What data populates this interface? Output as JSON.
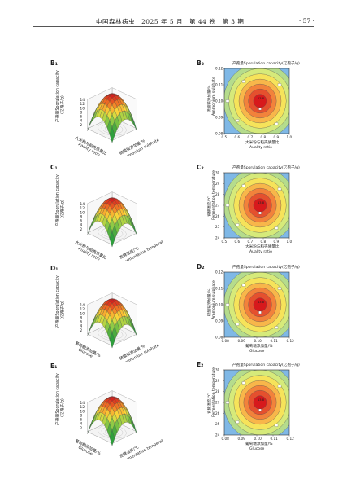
{
  "header": {
    "journal": "中国森林病虫",
    "issue": "2025 年 5 月　第 44 卷　第 3 期",
    "page": "· 57 ·"
  },
  "surface_plots": [
    {
      "label": "B₁",
      "z_label_cn": "产孢量Sporulation capacity",
      "z_label_unit": "(亿孢子/g)",
      "z_ticks": [
        "14",
        "12",
        "10",
        "8",
        "6",
        "4",
        "2"
      ],
      "x_label_cn": "大米粉与稻壳质量比",
      "x_label_en": "Aaulity ratio",
      "y_label_cn": "硫酸铵添加量/%",
      "y_label_en": "Ammonium sulphate"
    },
    {
      "label": "C₁",
      "z_label_cn": "产孢量Sporulation capacity",
      "z_label_unit": "(亿孢子/g)",
      "z_ticks": [
        "14",
        "12",
        "10",
        "8",
        "6",
        "4",
        "2"
      ],
      "x_label_cn": "大米粉与稻壳质量比",
      "x_label_en": "Auality ratio",
      "y_label_cn": "发酵温度/℃",
      "y_label_en": "Fermentation temperature"
    },
    {
      "label": "D₁",
      "z_label_cn": "产孢量Sporulation capacity",
      "z_label_unit": "(亿孢子/g)",
      "z_ticks": [
        "14",
        "12",
        "10",
        "8",
        "6",
        "4",
        "2"
      ],
      "x_label_cn": "葡萄糖添加量/%",
      "x_label_en": "Glucose",
      "y_label_cn": "硫酸铵添加量/%",
      "y_label_en": "Ammonium sulphate"
    },
    {
      "label": "E₁",
      "z_label_cn": "产孢量Sporulation capacity",
      "z_label_unit": "(亿孢子/g)",
      "z_ticks": [
        "14",
        "12",
        "10",
        "8",
        "6",
        "4",
        "2"
      ],
      "x_label_cn": "葡萄糖添加量/%",
      "x_label_en": "Glucose",
      "y_label_cn": "发酵温度/℃",
      "y_label_en": "Fermentation temperature"
    }
  ],
  "contour_plots": [
    {
      "label": "B₂",
      "title": "产孢量Sporulation capacity(亿孢子/g)",
      "ylabel_cn": "硫酸铵添加量/%",
      "ylabel_en": "Ammonium sulphate",
      "xlabel_cn": "大米粉与稻壳质量比",
      "xlabel_en": "Auality ratio",
      "x_ticks": [
        "0.5",
        "0.6",
        "0.7",
        "0.8",
        "0.9",
        "1.0"
      ],
      "y_ticks": [
        "0.08",
        "0.09",
        "0.10",
        "0.11",
        "0.12"
      ],
      "center_value": "13.8"
    },
    {
      "label": "C₂",
      "title": "产孢量Sporulation capacity(亿孢子/g)",
      "ylabel_cn": "发酵温度/℃",
      "ylabel_en": "Fermentation temperature",
      "xlabel_cn": "大米粉与稻壳质量比",
      "xlabel_en": "Auality ratio",
      "x_ticks": [
        "0.5",
        "0.6",
        "0.7",
        "0.8",
        "0.9",
        "1.0"
      ],
      "y_ticks": [
        "24",
        "25",
        "26",
        "27",
        "28",
        "29",
        "30"
      ],
      "center_value": "13.8"
    },
    {
      "label": "D₂",
      "title": "产孢量Sporulation capacity(亿孢子/g)",
      "ylabel_cn": "硫酸铵添加量/%",
      "ylabel_en": "Ammonium sulphate",
      "xlabel_cn": "葡萄糖添加量/%",
      "xlabel_en": "Glucose",
      "x_ticks": [
        "0.08",
        "0.09",
        "0.10",
        "0.11",
        "0.12"
      ],
      "y_ticks": [
        "0.08",
        "0.09",
        "0.10",
        "0.11",
        "0.12"
      ],
      "center_value": "13.8"
    },
    {
      "label": "E₂",
      "title": "产孢量Sporulation capacity(亿孢子/g)",
      "ylabel_cn": "发酵温度/℃",
      "ylabel_en": "Fermentation temperature",
      "xlabel_cn": "葡萄糖添加量/%",
      "xlabel_en": "Glucose",
      "x_ticks": [
        "0.08",
        "0.09",
        "0.10",
        "0.11",
        "0.12"
      ],
      "y_ticks": [
        "24",
        "25",
        "26",
        "27",
        "28",
        "29",
        "30"
      ],
      "center_value": "13.8"
    }
  ],
  "colors": {
    "peak": "#d7191c",
    "high": "#f46d43",
    "mid": "#fdae61",
    "low": "#a6d96a",
    "base": "#66bd63",
    "edge": "#9ecae1"
  }
}
